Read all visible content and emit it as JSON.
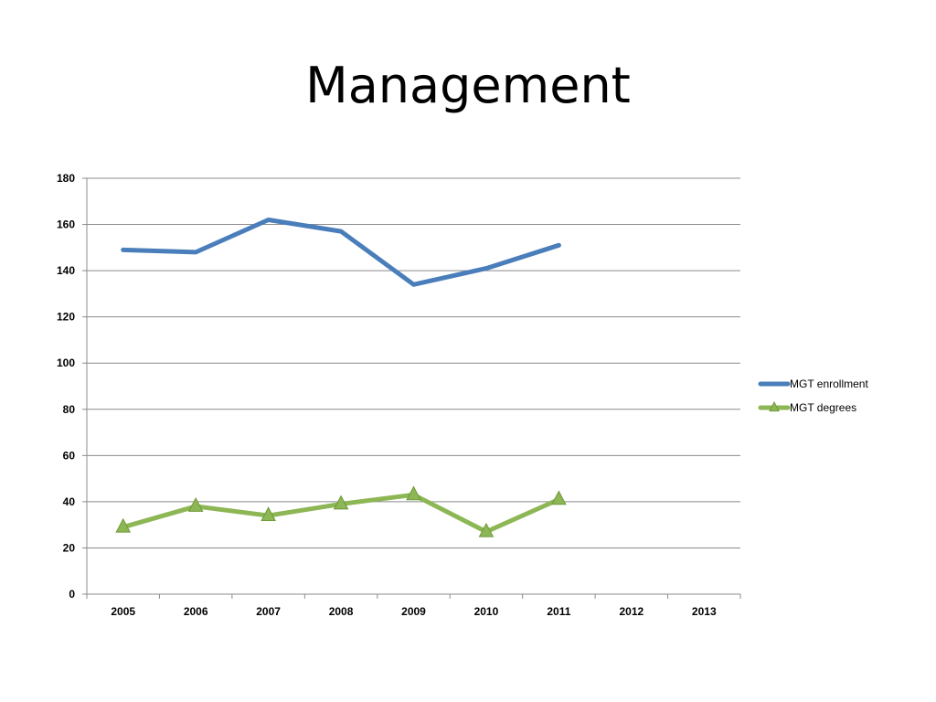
{
  "slide": {
    "title": "Management"
  },
  "chart_data": {
    "type": "line",
    "title": "Management",
    "xlabel": "",
    "ylabel": "",
    "categories": [
      "2005",
      "2006",
      "2007",
      "2008",
      "2009",
      "2010",
      "2011",
      "2012",
      "2013"
    ],
    "ylim": [
      0,
      180
    ],
    "yticks": [
      0,
      20,
      40,
      60,
      80,
      100,
      120,
      140,
      160,
      180
    ],
    "grid": true,
    "legend_position": "right",
    "series": [
      {
        "name": "MGT enrollment",
        "color": "#4A7EBB",
        "marker": "none",
        "values": [
          149,
          148,
          162,
          157,
          134,
          141,
          151,
          null,
          null
        ]
      },
      {
        "name": "MGT degrees",
        "color": "#8DB654",
        "marker": "triangle",
        "values": [
          29,
          38,
          34,
          39,
          43,
          27,
          41,
          null,
          null
        ]
      }
    ]
  }
}
